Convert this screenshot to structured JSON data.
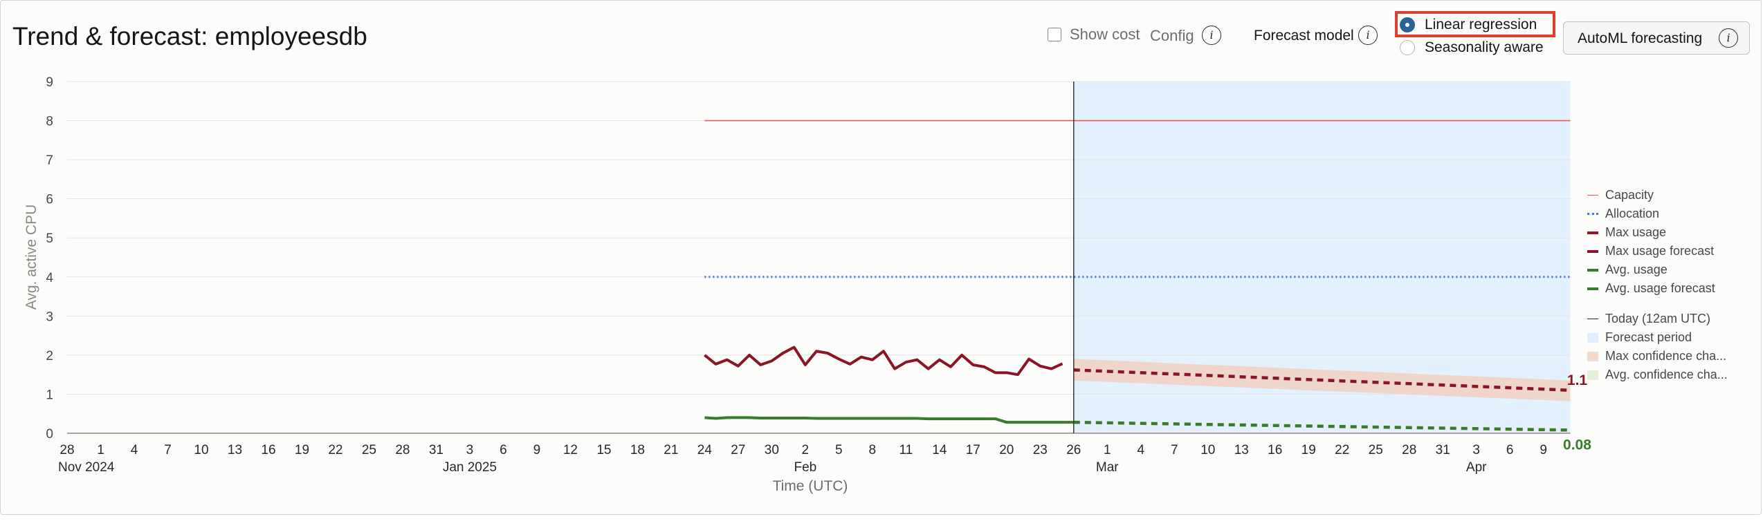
{
  "header": {
    "title": "Trend & forecast: employeesdb",
    "show_cost_label": "Show cost",
    "config_label": "Config",
    "forecast_model_label": "Forecast model",
    "forecast_models": [
      {
        "label": "Linear regression",
        "selected": true
      },
      {
        "label": "Seasonality aware",
        "selected": false
      }
    ],
    "automl_button_label": "AutoML forecasting",
    "info_glyph": "i"
  },
  "chart_data": {
    "type": "line",
    "ylabel": "Avg. active CPU",
    "xlabel": "Time (UTC)",
    "ylim": [
      0,
      9
    ],
    "y_ticks": [
      "0",
      "1",
      "2",
      "3",
      "4",
      "5",
      "6",
      "7",
      "8",
      "9"
    ],
    "x_ticks": [
      "28",
      "1",
      "4",
      "7",
      "10",
      "13",
      "16",
      "19",
      "22",
      "25",
      "28",
      "31",
      "3",
      "6",
      "9",
      "12",
      "15",
      "18",
      "21",
      "24",
      "27",
      "30",
      "2",
      "5",
      "8",
      "11",
      "14",
      "17",
      "20",
      "23",
      "26",
      "1",
      "4",
      "7",
      "10",
      "13",
      "16",
      "19",
      "22",
      "25",
      "28",
      "31",
      "3",
      "6",
      "9"
    ],
    "x_secondary_labels": [
      {
        "label": "Nov 2024",
        "tick_index": 0
      },
      {
        "label": "Jan 2025",
        "tick_index": 12
      },
      {
        "label": "Feb",
        "tick_index": 22
      },
      {
        "label": "Mar",
        "tick_index": 31
      },
      {
        "label": "Apr",
        "tick_index": 42
      }
    ],
    "today_tick_index": 30,
    "forecast_end_tick_index": 44.8,
    "series": [
      {
        "name": "Capacity",
        "style": "solid-thin",
        "color": "#e05a54",
        "x_start": 19,
        "x_end": 44.8,
        "value": 8
      },
      {
        "name": "Allocation",
        "style": "dotted",
        "color": "#3a78d8",
        "x_start": 19,
        "x_end": 44.8,
        "value": 4
      },
      {
        "name": "Max usage",
        "style": "solid-thick",
        "color": "#8a1526",
        "x_start": 19,
        "x_step": 0.3333,
        "values": [
          2.0,
          1.77,
          1.88,
          1.72,
          2.0,
          1.75,
          1.85,
          2.05,
          2.2,
          1.75,
          2.1,
          2.05,
          1.9,
          1.77,
          1.95,
          1.88,
          2.1,
          1.65,
          1.82,
          1.88,
          1.65,
          1.88,
          1.7,
          2.0,
          1.75,
          1.7,
          1.55,
          1.55,
          1.5,
          1.9,
          1.72,
          1.65,
          1.78
        ]
      },
      {
        "name": "Max usage forecast",
        "style": "dashed",
        "color": "#8a1526",
        "x_start": 30,
        "x_end": 44.8,
        "values": [
          1.62,
          1.1
        ]
      },
      {
        "name": "Avg. usage",
        "style": "solid-thick",
        "color": "#3a7a2b",
        "x_start": 19,
        "x_end": 30,
        "values": [
          0.4,
          0.38,
          0.4,
          0.4,
          0.4,
          0.39,
          0.39,
          0.39,
          0.39,
          0.39,
          0.38,
          0.38,
          0.38,
          0.38,
          0.38,
          0.38,
          0.38,
          0.38,
          0.38,
          0.38,
          0.37,
          0.37,
          0.37,
          0.37,
          0.37,
          0.37,
          0.37,
          0.28,
          0.28,
          0.28,
          0.28,
          0.28,
          0.28,
          0.28
        ]
      },
      {
        "name": "Avg. usage forecast",
        "style": "dashed",
        "color": "#3a7a2b",
        "x_start": 30,
        "x_end": 44.8,
        "values": [
          0.28,
          0.08
        ]
      }
    ],
    "max_confidence_band": {
      "x_start": 30,
      "x_end": 44.8,
      "upper": [
        1.9,
        1.35
      ],
      "lower": [
        1.35,
        0.82
      ]
    },
    "end_labels": [
      {
        "text": "1.1",
        "color": "#8a1526",
        "value": 1.1
      },
      {
        "text": "0.08",
        "color": "#3a7a2b",
        "value": 0.08
      }
    ],
    "legend": {
      "placement": "right",
      "items": [
        {
          "label": "Capacity",
          "swatch": "thin-line",
          "color": "#e05a54"
        },
        {
          "label": "Allocation",
          "swatch": "dotted",
          "color": "#3a78d8"
        },
        {
          "label": "Max usage",
          "swatch": "thick-line",
          "color": "#8a1526"
        },
        {
          "label": "Max usage forecast",
          "swatch": "dashed",
          "color": "#8a1526"
        },
        {
          "label": "Avg. usage",
          "swatch": "thick-line",
          "color": "#3a7a2b"
        },
        {
          "label": "Avg. usage forecast",
          "swatch": "dashed",
          "color": "#3a7a2b"
        },
        {
          "label": "Today (12am UTC)",
          "swatch": "vline",
          "color": "#2a2826"
        },
        {
          "label": "Forecast period",
          "swatch": "block",
          "color": "#dfeefd"
        },
        {
          "label": "Max confidence cha...",
          "swatch": "block",
          "color": "#f2d9cc"
        },
        {
          "label": "Avg. confidence cha...",
          "swatch": "block",
          "color": "#e1efd9"
        }
      ]
    },
    "grid": true,
    "colors": {
      "forecast_bg": "#e3f0fe",
      "today_line": "#2a2826",
      "grid": "#e4e2df",
      "band": "#f0d2c4"
    }
  }
}
